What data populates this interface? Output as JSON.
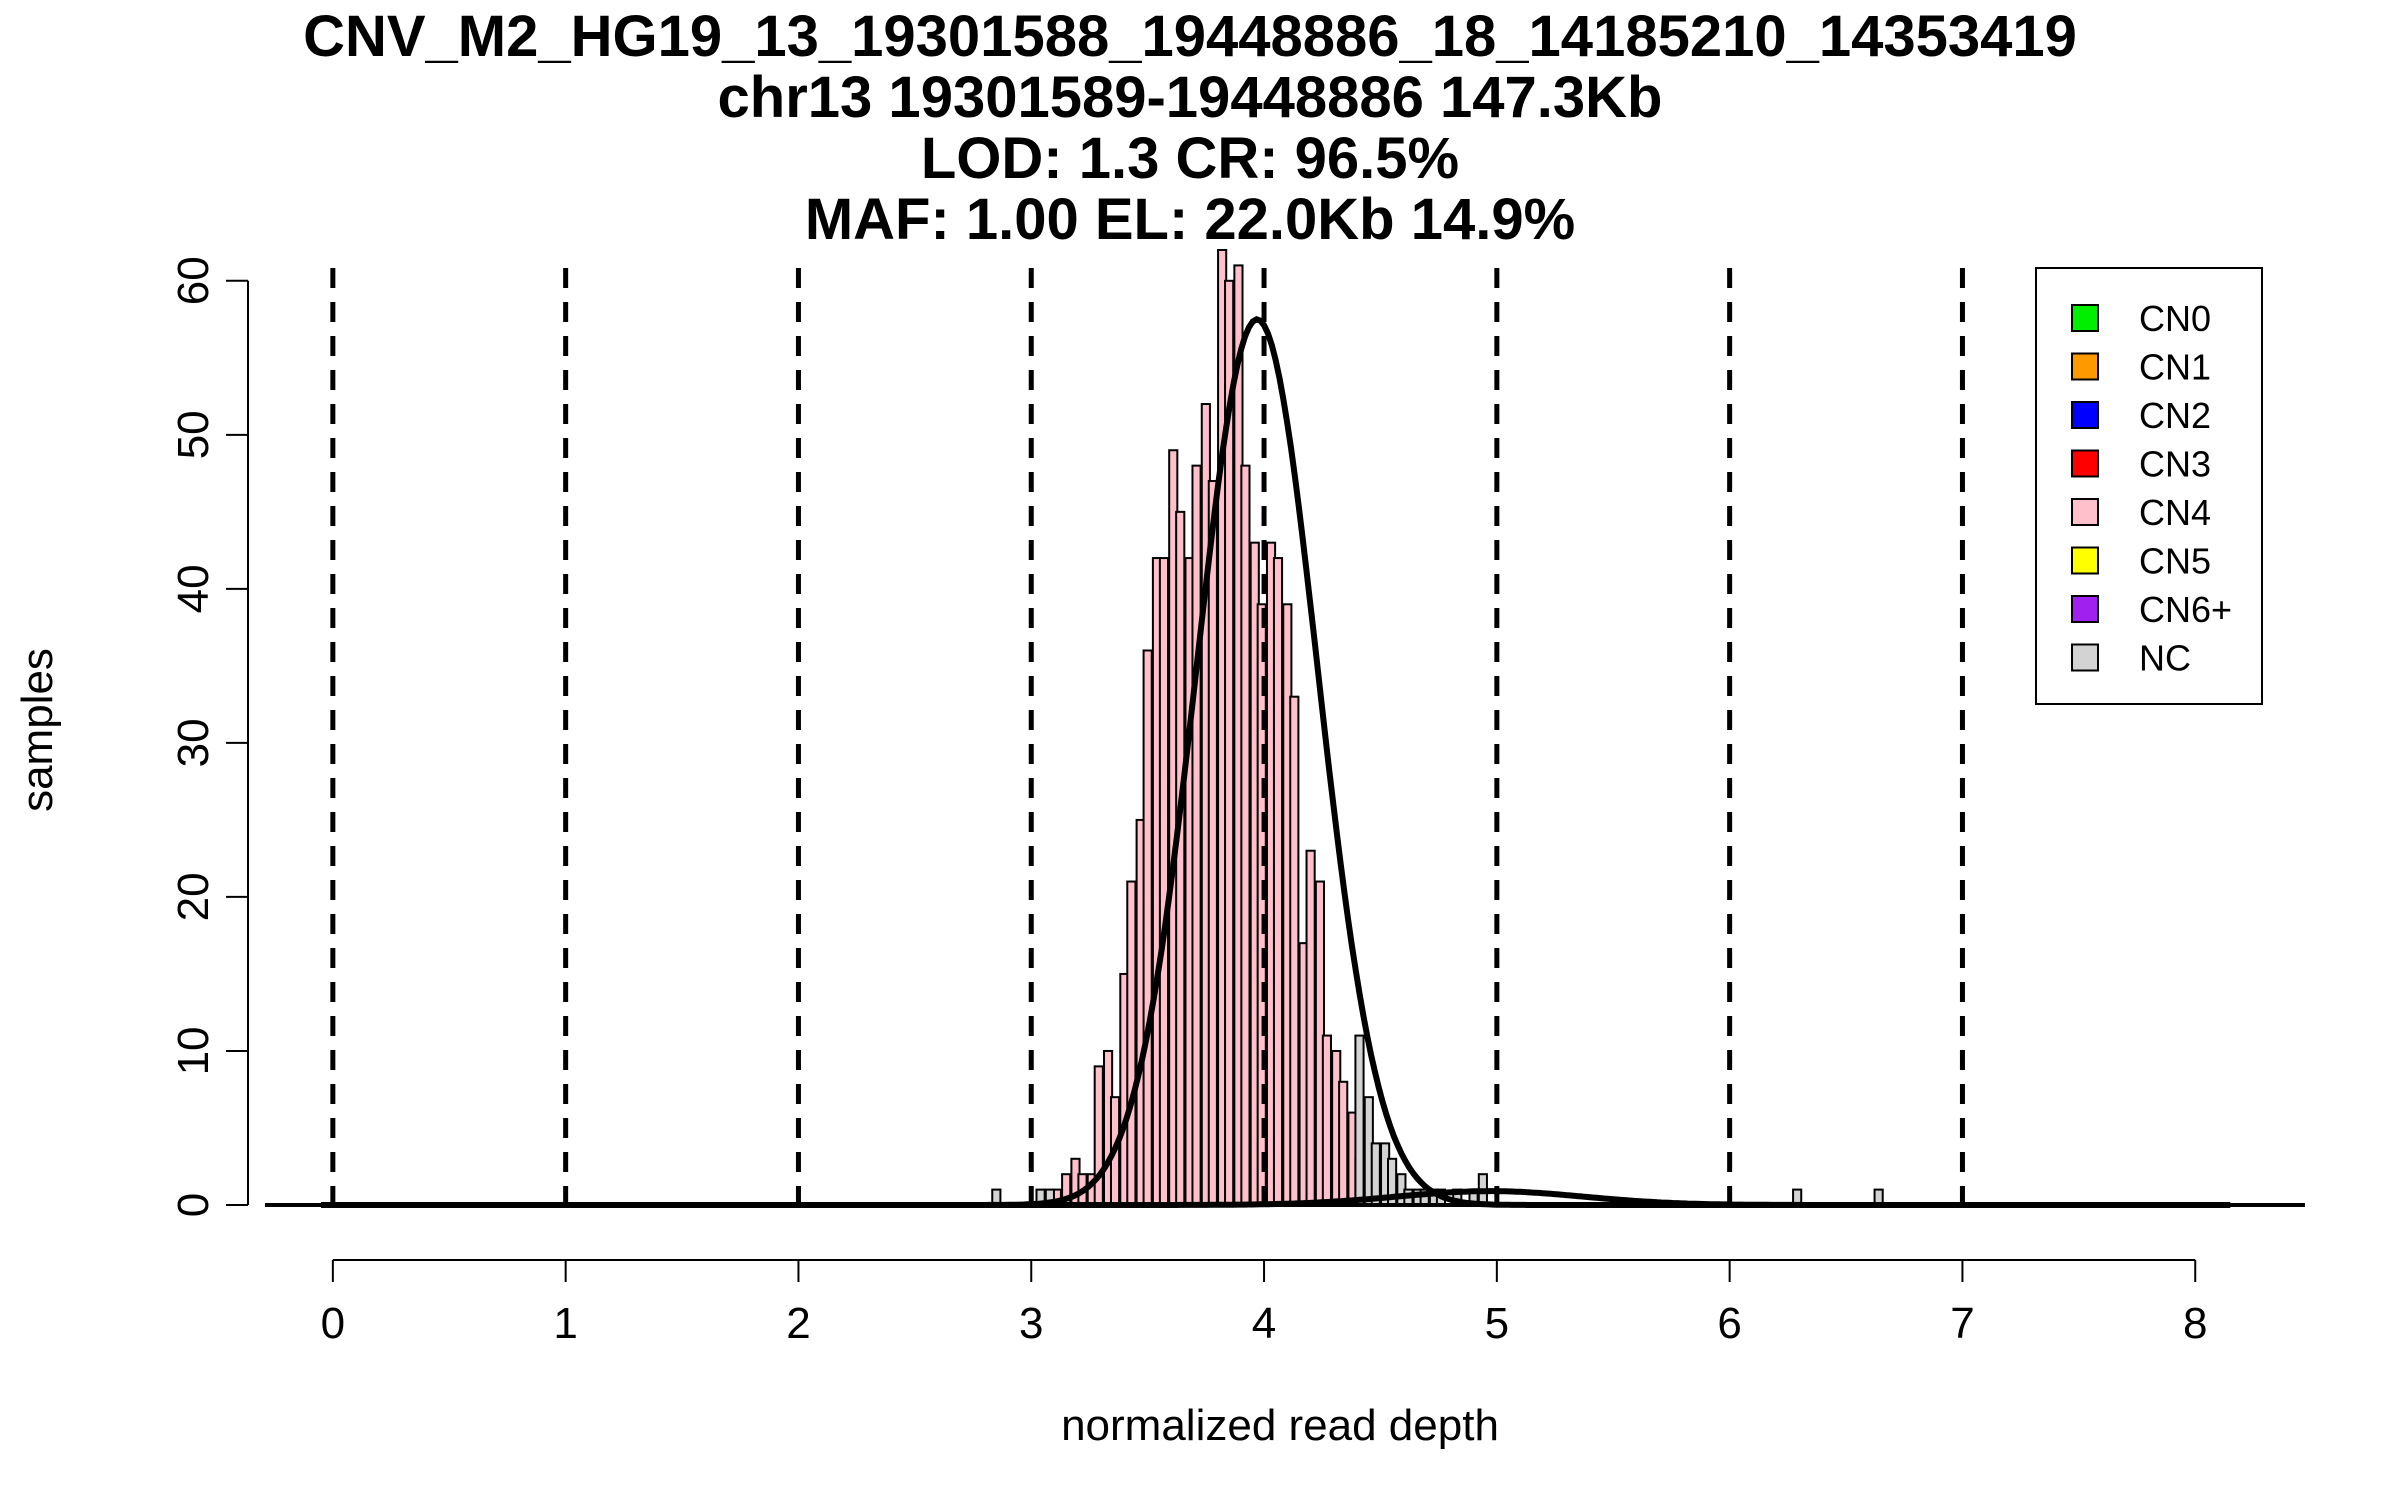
{
  "chart_data": {
    "type": "bar",
    "title": [
      "CNV_M2_HG19_13_19301588_19448886_18_14185210_14353419",
      "chr13 19301589-19448886 147.3Kb",
      "LOD: 1.3 CR: 96.5%",
      "MAF: 1.00 EL: 22.0Kb 14.9%"
    ],
    "xlabel": "normalized read depth",
    "ylabel": "samples",
    "xlim": [
      -0.27,
      8.45
    ],
    "ylim": [
      0,
      62
    ],
    "x_ticks": [
      0,
      1,
      2,
      3,
      4,
      5,
      6,
      7,
      8
    ],
    "y_ticks": [
      0,
      10,
      20,
      30,
      40,
      50,
      60
    ],
    "bin_width": 0.035,
    "cluster_lines": [
      0,
      1,
      2,
      3,
      4,
      5,
      6,
      7
    ],
    "legend": {
      "position": "top-right",
      "entries": [
        {
          "label": "CN0",
          "color": "#00ee00"
        },
        {
          "label": "CN1",
          "color": "#ff9900"
        },
        {
          "label": "CN2",
          "color": "#0000ff"
        },
        {
          "label": "CN3",
          "color": "#ff0000"
        },
        {
          "label": "CN4",
          "color": "#ffc0cb"
        },
        {
          "label": "CN5",
          "color": "#ffff00"
        },
        {
          "label": "CN6+",
          "color": "#a020f0"
        },
        {
          "label": "NC",
          "color": "#d3d3d3"
        }
      ]
    },
    "series": [
      {
        "name": "CN4",
        "color": "#ffc0cb",
        "bins": [
          {
            "x": 3.11,
            "y": 1
          },
          {
            "x": 3.15,
            "y": 2
          },
          {
            "x": 3.19,
            "y": 3
          },
          {
            "x": 3.22,
            "y": 2
          },
          {
            "x": 3.26,
            "y": 2
          },
          {
            "x": 3.29,
            "y": 9
          },
          {
            "x": 3.33,
            "y": 10
          },
          {
            "x": 3.36,
            "y": 7
          },
          {
            "x": 3.4,
            "y": 15
          },
          {
            "x": 3.43,
            "y": 21
          },
          {
            "x": 3.47,
            "y": 25
          },
          {
            "x": 3.5,
            "y": 36
          },
          {
            "x": 3.54,
            "y": 42
          },
          {
            "x": 3.57,
            "y": 42
          },
          {
            "x": 3.61,
            "y": 49
          },
          {
            "x": 3.64,
            "y": 45
          },
          {
            "x": 3.68,
            "y": 42
          },
          {
            "x": 3.71,
            "y": 48
          },
          {
            "x": 3.75,
            "y": 52
          },
          {
            "x": 3.78,
            "y": 47
          },
          {
            "x": 3.82,
            "y": 62
          },
          {
            "x": 3.85,
            "y": 60
          },
          {
            "x": 3.89,
            "y": 61
          },
          {
            "x": 3.92,
            "y": 48
          },
          {
            "x": 3.96,
            "y": 43
          },
          {
            "x": 3.99,
            "y": 39
          },
          {
            "x": 4.03,
            "y": 43
          },
          {
            "x": 4.06,
            "y": 42
          },
          {
            "x": 4.1,
            "y": 39
          },
          {
            "x": 4.13,
            "y": 33
          },
          {
            "x": 4.17,
            "y": 17
          },
          {
            "x": 4.2,
            "y": 23
          },
          {
            "x": 4.24,
            "y": 21
          },
          {
            "x": 4.27,
            "y": 11
          },
          {
            "x": 4.31,
            "y": 10
          },
          {
            "x": 4.34,
            "y": 8
          },
          {
            "x": 4.38,
            "y": 6
          },
          {
            "x": 4.41,
            "y": 3
          },
          {
            "x": 4.45,
            "y": 2
          },
          {
            "x": 4.48,
            "y": 1
          }
        ]
      },
      {
        "name": "NC",
        "color": "#d3d3d3",
        "bins": [
          {
            "x": 2.85,
            "y": 1
          },
          {
            "x": 3.04,
            "y": 1
          },
          {
            "x": 3.08,
            "y": 1
          },
          {
            "x": 4.41,
            "y": 11
          },
          {
            "x": 4.45,
            "y": 7
          },
          {
            "x": 4.48,
            "y": 4
          },
          {
            "x": 4.52,
            "y": 4
          },
          {
            "x": 4.55,
            "y": 3
          },
          {
            "x": 4.59,
            "y": 2
          },
          {
            "x": 4.62,
            "y": 1
          },
          {
            "x": 4.66,
            "y": 1
          },
          {
            "x": 4.69,
            "y": 1
          },
          {
            "x": 4.73,
            "y": 1
          },
          {
            "x": 4.76,
            "y": 1
          },
          {
            "x": 4.83,
            "y": 1
          },
          {
            "x": 4.9,
            "y": 1
          },
          {
            "x": 4.94,
            "y": 2
          },
          {
            "x": 6.29,
            "y": 1
          },
          {
            "x": 6.64,
            "y": 1
          }
        ]
      }
    ],
    "fit_curves": [
      {
        "name": "CN4 fit",
        "mean": 3.97,
        "sd": 0.26,
        "peak": 57.5
      },
      {
        "name": "CN5 fit",
        "mean": 4.97,
        "sd": 0.4,
        "peak": 0.9
      }
    ]
  }
}
